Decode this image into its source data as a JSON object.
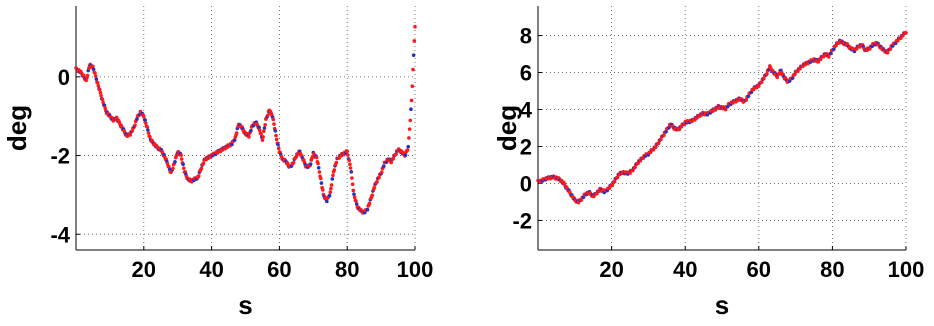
{
  "chart_data": [
    {
      "type": "scatter",
      "title": "",
      "xlabel": "s",
      "ylabel": "deg",
      "xlim": [
        0,
        100
      ],
      "ylim": [
        -4.4,
        1.8
      ],
      "xticks": [
        20,
        40,
        60,
        80,
        100
      ],
      "yticks": [
        -4,
        -2,
        0
      ],
      "tick_labels_x": [
        "20",
        "40",
        "60",
        "80",
        "100"
      ],
      "tick_labels_y": [
        "-4",
        "-2",
        "0"
      ],
      "grid": true,
      "legend": "none",
      "series_colors": [
        "#ff1a1a",
        "#2233cc"
      ],
      "x": [
        0,
        1,
        2,
        3,
        4,
        5,
        6,
        7,
        8,
        9,
        10,
        11,
        12,
        13,
        14,
        15,
        16,
        17,
        18,
        19,
        20,
        21,
        22,
        23,
        24,
        25,
        26,
        27,
        28,
        29,
        30,
        31,
        32,
        33,
        34,
        35,
        36,
        37,
        38,
        39,
        40,
        41,
        42,
        43,
        44,
        45,
        46,
        47,
        48,
        49,
        50,
        51,
        52,
        53,
        54,
        55,
        56,
        57,
        58,
        59,
        60,
        61,
        62,
        63,
        64,
        65,
        66,
        67,
        68,
        69,
        70,
        71,
        72,
        73,
        74,
        75,
        76,
        77,
        78,
        79,
        80,
        81,
        82,
        83,
        84,
        85,
        86,
        87,
        88,
        89,
        90,
        91,
        92,
        93,
        94,
        95,
        96,
        97,
        98,
        99,
        100
      ],
      "values": [
        0.2,
        0.15,
        0.05,
        -0.1,
        0.3,
        0.25,
        -0.05,
        -0.35,
        -0.65,
        -0.9,
        -1.0,
        -1.1,
        -1.05,
        -1.2,
        -1.35,
        -1.5,
        -1.45,
        -1.3,
        -1.05,
        -0.9,
        -1.0,
        -1.3,
        -1.6,
        -1.7,
        -1.8,
        -1.85,
        -2.0,
        -2.2,
        -2.45,
        -2.2,
        -1.9,
        -2.0,
        -2.4,
        -2.6,
        -2.65,
        -2.6,
        -2.55,
        -2.3,
        -2.1,
        -2.05,
        -2.0,
        -1.95,
        -1.9,
        -1.85,
        -1.8,
        -1.75,
        -1.7,
        -1.55,
        -1.2,
        -1.3,
        -1.45,
        -1.5,
        -1.25,
        -1.15,
        -1.3,
        -1.6,
        -1.1,
        -0.85,
        -1.0,
        -1.5,
        -1.9,
        -2.1,
        -2.15,
        -2.3,
        -2.2,
        -2.0,
        -1.9,
        -2.1,
        -2.3,
        -2.25,
        -1.95,
        -2.05,
        -2.5,
        -3.0,
        -3.15,
        -2.95,
        -2.4,
        -2.1,
        -2.0,
        -1.95,
        -1.9,
        -2.3,
        -3.0,
        -3.3,
        -3.4,
        -3.45,
        -3.35,
        -3.1,
        -2.8,
        -2.6,
        -2.45,
        -2.2,
        -2.1,
        -2.15,
        -2.0,
        -1.85,
        -1.9,
        -2.0,
        -1.8,
        -0.6,
        1.3
      ]
    },
    {
      "type": "scatter",
      "title": "",
      "xlabel": "s",
      "ylabel": "deg",
      "xlim": [
        0,
        100
      ],
      "ylim": [
        -3.6,
        9.6
      ],
      "xticks": [
        20,
        40,
        60,
        80,
        100
      ],
      "yticks": [
        -2,
        0,
        2,
        4,
        6,
        8
      ],
      "tick_labels_x": [
        "20",
        "40",
        "60",
        "80",
        "100"
      ],
      "tick_labels_y": [
        "-2",
        "0",
        "2",
        "4",
        "6",
        "8"
      ],
      "grid": true,
      "legend": "none",
      "series_colors": [
        "#ff1a1a",
        "#2233cc"
      ],
      "x": [
        0,
        1,
        2,
        3,
        4,
        5,
        6,
        7,
        8,
        9,
        10,
        11,
        12,
        13,
        14,
        15,
        16,
        17,
        18,
        19,
        20,
        21,
        22,
        23,
        24,
        25,
        26,
        27,
        28,
        29,
        30,
        31,
        32,
        33,
        34,
        35,
        36,
        37,
        38,
        39,
        40,
        41,
        42,
        43,
        44,
        45,
        46,
        47,
        48,
        49,
        50,
        51,
        52,
        53,
        54,
        55,
        56,
        57,
        58,
        59,
        60,
        61,
        62,
        63,
        64,
        65,
        66,
        67,
        68,
        69,
        70,
        71,
        72,
        73,
        74,
        75,
        76,
        77,
        78,
        79,
        80,
        81,
        82,
        83,
        84,
        85,
        86,
        87,
        88,
        89,
        90,
        91,
        92,
        93,
        94,
        95,
        96,
        97,
        98,
        99,
        100
      ],
      "values": [
        0.1,
        0.15,
        0.25,
        0.3,
        0.35,
        0.3,
        0.2,
        0.0,
        -0.3,
        -0.6,
        -0.9,
        -1.0,
        -0.8,
        -0.55,
        -0.5,
        -0.7,
        -0.5,
        -0.3,
        -0.45,
        -0.3,
        -0.1,
        0.2,
        0.5,
        0.6,
        0.55,
        0.6,
        0.8,
        1.1,
        1.3,
        1.5,
        1.6,
        1.8,
        2.0,
        2.3,
        2.6,
        2.9,
        3.2,
        3.0,
        2.9,
        3.1,
        3.3,
        3.35,
        3.4,
        3.55,
        3.7,
        3.8,
        3.75,
        3.9,
        4.0,
        4.15,
        4.1,
        4.05,
        4.3,
        4.4,
        4.5,
        4.6,
        4.4,
        4.7,
        5.0,
        5.2,
        5.3,
        5.6,
        5.9,
        6.3,
        6.0,
        5.8,
        6.1,
        5.7,
        5.5,
        5.7,
        6.0,
        6.2,
        6.4,
        6.5,
        6.6,
        6.7,
        6.6,
        6.8,
        7.0,
        6.9,
        7.2,
        7.5,
        7.7,
        7.6,
        7.5,
        7.3,
        7.2,
        7.4,
        7.5,
        7.2,
        7.3,
        7.5,
        7.6,
        7.4,
        7.2,
        7.1,
        7.4,
        7.6,
        7.8,
        8.0,
        8.2
      ]
    }
  ]
}
